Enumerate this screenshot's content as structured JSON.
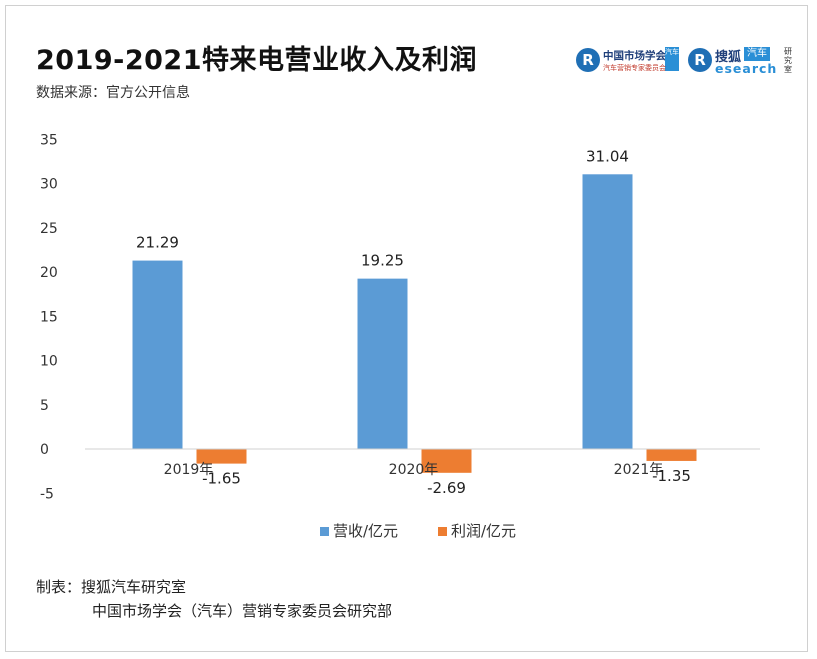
{
  "header": {
    "title": "2019-2021特来电营业收入及利润",
    "source": "数据来源：官方公开信息"
  },
  "logos": {
    "left": {
      "mark": "R",
      "name": "中国市场学会",
      "badge": "汽车",
      "tagline": "汽车营销专家委员会"
    },
    "right": {
      "mark": "R",
      "name": "搜狐",
      "auto": "汽车",
      "research": "esearch",
      "lab": "研究室"
    }
  },
  "chart_data": {
    "type": "bar",
    "title": "2019-2021特来电营业收入及利润",
    "categories": [
      "2019年",
      "2020年",
      "2021年"
    ],
    "series": [
      {
        "name": "营收/亿元",
        "values": [
          21.29,
          19.25,
          31.04
        ],
        "color": "#5b9bd5"
      },
      {
        "name": "利润/亿元",
        "values": [
          -1.65,
          -2.69,
          -1.35
        ],
        "color": "#ed7d31"
      }
    ],
    "ylim": [
      -5,
      35
    ],
    "yticks": [
      35,
      30,
      25,
      20,
      15,
      10,
      5,
      0,
      -5
    ],
    "grid": false,
    "legend": "bottom"
  },
  "footer": {
    "line1": "制表：搜狐汽车研究室",
    "line2": "中国市场学会（汽车）营销专家委员会研究部"
  }
}
